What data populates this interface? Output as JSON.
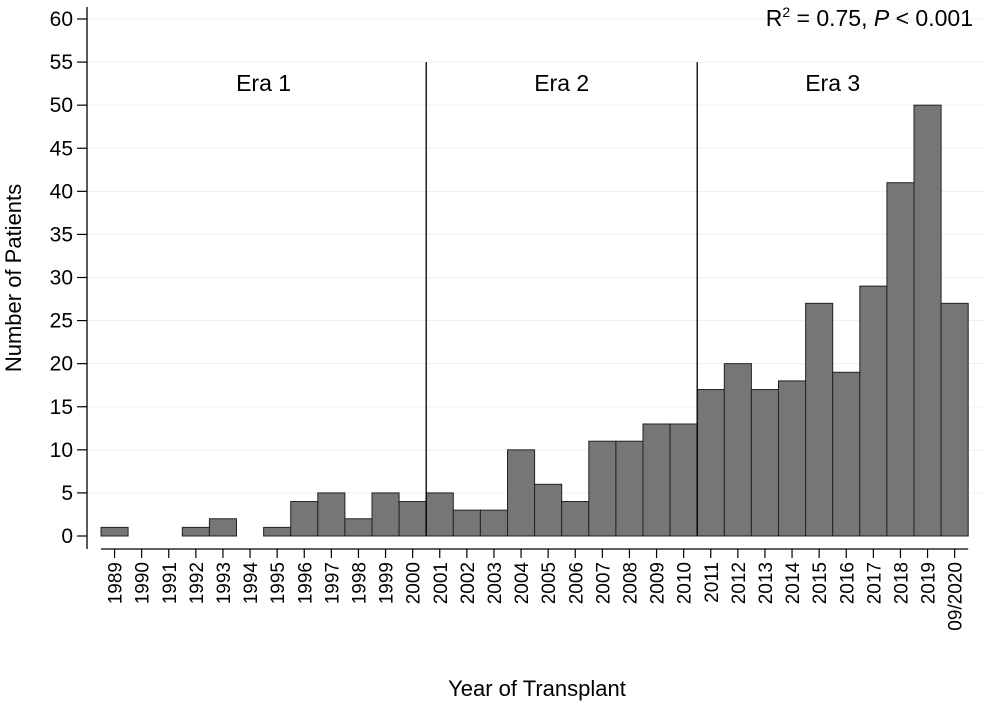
{
  "chart_data": {
    "type": "bar",
    "xlabel": "Year of Transplant",
    "ylabel": "Number of Patients",
    "ylim": [
      0,
      60
    ],
    "yticks": [
      0,
      5,
      10,
      15,
      20,
      25,
      30,
      35,
      40,
      45,
      50,
      55,
      60
    ],
    "grid": true,
    "categories": [
      "1989",
      "1990",
      "1991",
      "1992",
      "1993",
      "1994",
      "1995",
      "1996",
      "1997",
      "1998",
      "1999",
      "2000",
      "2001",
      "2002",
      "2003",
      "2004",
      "2005",
      "2006",
      "2007",
      "2008",
      "2009",
      "2010",
      "2011",
      "2012",
      "2013",
      "2014",
      "2015",
      "2016",
      "2017",
      "2018",
      "2019",
      "09/2020"
    ],
    "values": [
      1,
      0,
      0,
      1,
      2,
      0,
      1,
      4,
      5,
      2,
      5,
      4,
      5,
      3,
      3,
      10,
      6,
      4,
      11,
      11,
      13,
      13,
      17,
      20,
      17,
      18,
      27,
      19,
      29,
      41,
      50,
      27
    ],
    "bar_color": "#767676",
    "eras": [
      {
        "label": "Era 1",
        "start": "1989",
        "end": "2000"
      },
      {
        "label": "Era 2",
        "start": "2001",
        "end": "2010"
      },
      {
        "label": "Era 3",
        "start": "2011",
        "end": "09/2020"
      }
    ],
    "annotation": {
      "r2_prefix": "R",
      "r2_sup": "2",
      "r2_value": " = 0.75, ",
      "p_symbol": "P",
      "p_value": " < 0.001"
    }
  }
}
